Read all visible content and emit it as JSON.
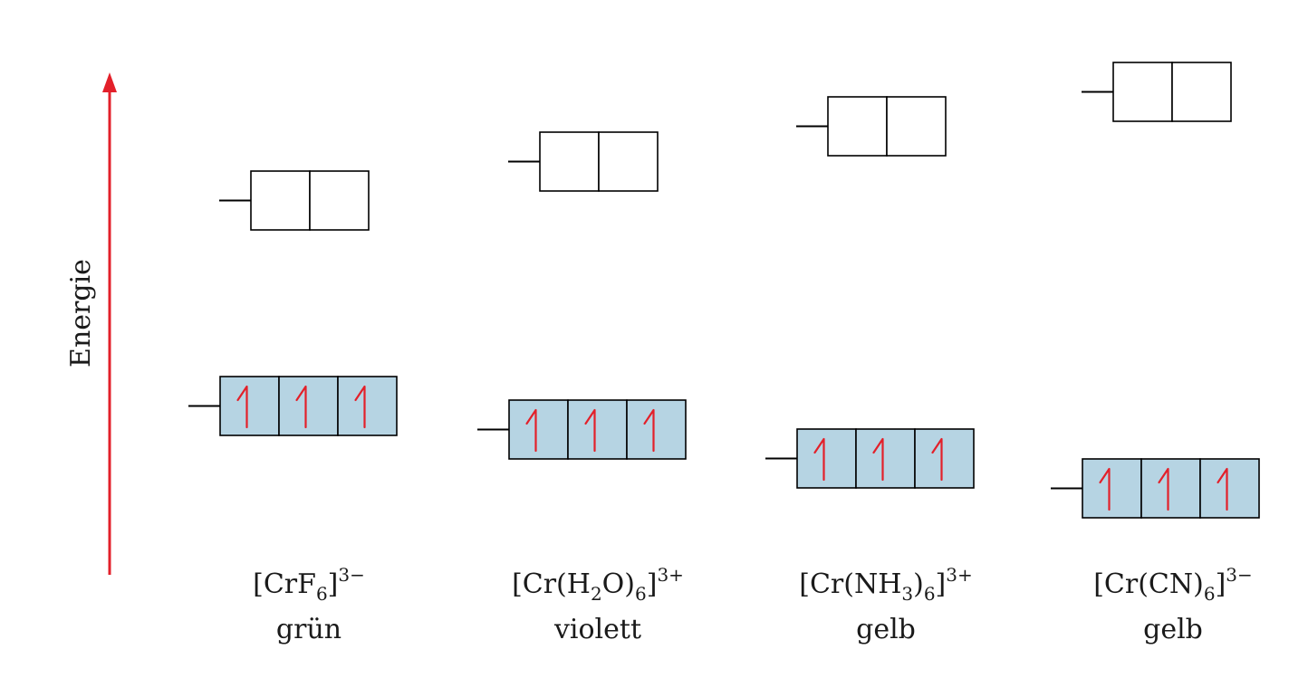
{
  "axis": {
    "label": "Energie",
    "color": "#e3202a"
  },
  "colors": {
    "lower_box_fill": "#b6d4e3",
    "arrow": "#e3202a",
    "line": "#000000"
  },
  "complexes": [
    {
      "formula": {
        "open": "[CrF",
        "sub1": "6",
        "mid": "",
        "sub2": "",
        "close": "]",
        "charge": "3−"
      },
      "color_name": "grün",
      "lower_orbitals": {
        "count": 3,
        "electrons": 3
      },
      "upper_orbitals": {
        "count": 2,
        "electrons": 0
      }
    },
    {
      "formula": {
        "open": "[Cr(H",
        "sub1": "2",
        "mid": "O)",
        "sub2": "6",
        "close": "]",
        "charge": "3+"
      },
      "color_name": "violett",
      "lower_orbitals": {
        "count": 3,
        "electrons": 3
      },
      "upper_orbitals": {
        "count": 2,
        "electrons": 0
      }
    },
    {
      "formula": {
        "open": "[Cr(NH",
        "sub1": "3",
        "mid": ")",
        "sub2": "6",
        "close": "]",
        "charge": "3+"
      },
      "color_name": "gelb",
      "lower_orbitals": {
        "count": 3,
        "electrons": 3
      },
      "upper_orbitals": {
        "count": 2,
        "electrons": 0
      }
    },
    {
      "formula": {
        "open": "[Cr(CN)",
        "sub1": "6",
        "mid": "",
        "sub2": "",
        "close": "]",
        "charge": "3−"
      },
      "color_name": "gelb",
      "lower_orbitals": {
        "count": 3,
        "electrons": 3
      },
      "upper_orbitals": {
        "count": 2,
        "electrons": 0
      }
    }
  ]
}
